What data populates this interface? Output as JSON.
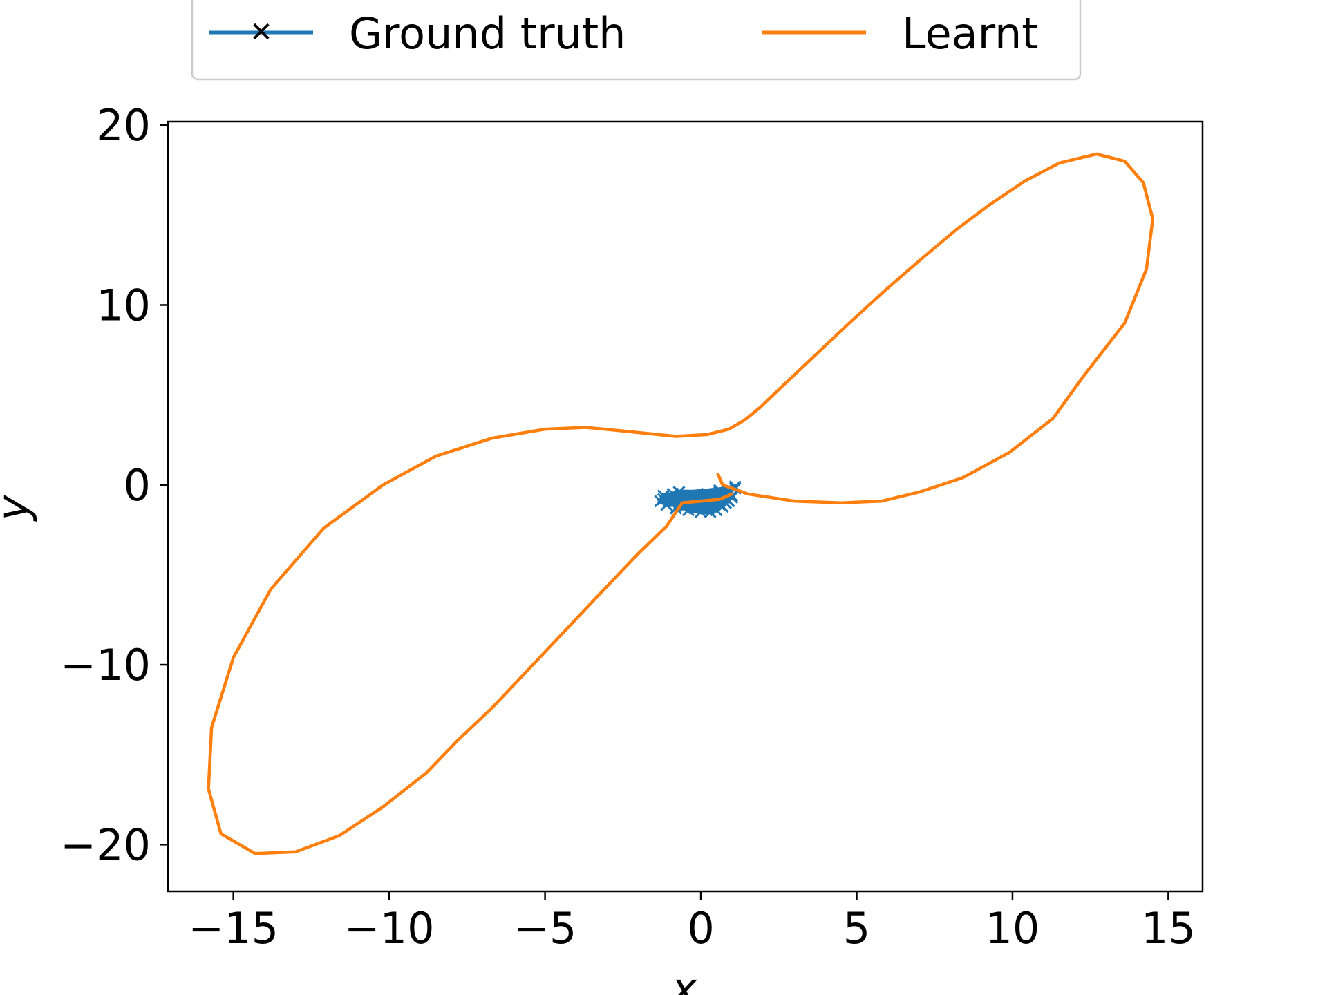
{
  "chart_data": {
    "type": "line",
    "title": "",
    "xlabel": "x",
    "ylabel": "y",
    "xlim": [
      -17.1,
      16.1
    ],
    "ylim": [
      -22.6,
      20.2
    ],
    "xticks": [
      -15,
      -10,
      -5,
      0,
      5,
      10,
      15
    ],
    "yticks": [
      -20,
      -10,
      0,
      10,
      20
    ],
    "xtick_labels": [
      "−15",
      "−10",
      "−5",
      "0",
      "5",
      "10",
      "15"
    ],
    "ytick_labels": [
      "−20",
      "−10",
      "0",
      "10",
      "20"
    ],
    "grid": false,
    "legend_position": "top-center, above the plot area",
    "series": [
      {
        "name": "Ground truth",
        "color": "#1f77b4",
        "marker": "x",
        "points": [
          [
            0.6,
            -0.3
          ],
          [
            -0.9,
            -0.5
          ],
          [
            1.1,
            -0.2
          ],
          [
            -1.2,
            -0.8
          ],
          [
            1.0,
            -0.6
          ],
          [
            -1.1,
            -1.1
          ],
          [
            0.9,
            -0.9
          ],
          [
            -0.8,
            -1.3
          ],
          [
            0.7,
            -1.2
          ],
          [
            -0.4,
            -1.4
          ],
          [
            0.3,
            -1.5
          ],
          [
            0.0,
            -1.5
          ],
          [
            0.5,
            -1.4
          ],
          [
            -0.6,
            -1.2
          ],
          [
            0.8,
            -1.0
          ],
          [
            -1.0,
            -0.9
          ],
          [
            1.0,
            -0.7
          ],
          [
            -1.2,
            -0.6
          ],
          [
            0.6,
            -0.4
          ],
          [
            -0.7,
            -0.4
          ],
          [
            0.2,
            -0.5
          ],
          [
            -0.3,
            -0.6
          ],
          [
            0.9,
            -0.5
          ],
          [
            -0.9,
            -0.7
          ],
          [
            0.4,
            -0.8
          ],
          [
            -0.5,
            -1.0
          ],
          [
            0.6,
            -1.1
          ],
          [
            -0.2,
            -1.3
          ],
          [
            0.1,
            -1.2
          ],
          [
            1.1,
            -0.1
          ],
          [
            -1.3,
            -0.9
          ],
          [
            0.9,
            -0.3
          ]
        ]
      },
      {
        "name": "Learnt",
        "color": "#ff7f0e",
        "marker": "none",
        "points": [
          [
            0.55,
            0.6
          ],
          [
            0.7,
            0.0
          ],
          [
            1.5,
            -0.5
          ],
          [
            3.0,
            -0.9
          ],
          [
            4.5,
            -1.0
          ],
          [
            5.8,
            -0.9
          ],
          [
            7.0,
            -0.4
          ],
          [
            8.4,
            0.4
          ],
          [
            9.9,
            1.8
          ],
          [
            11.3,
            3.7
          ],
          [
            12.3,
            6.1
          ],
          [
            13.6,
            9.0
          ],
          [
            14.3,
            12.0
          ],
          [
            14.5,
            14.8
          ],
          [
            14.2,
            16.8
          ],
          [
            13.6,
            18.0
          ],
          [
            12.7,
            18.4
          ],
          [
            11.5,
            17.9
          ],
          [
            10.4,
            16.9
          ],
          [
            9.2,
            15.5
          ],
          [
            8.2,
            14.2
          ],
          [
            7.1,
            12.6
          ],
          [
            5.9,
            10.8
          ],
          [
            4.7,
            8.9
          ],
          [
            3.6,
            7.1
          ],
          [
            2.5,
            5.3
          ],
          [
            1.9,
            4.3
          ],
          [
            1.4,
            3.6
          ],
          [
            0.9,
            3.1
          ],
          [
            0.2,
            2.8
          ],
          [
            -0.8,
            2.7
          ],
          [
            -2.5,
            3.0
          ],
          [
            -3.7,
            3.2
          ],
          [
            -5.0,
            3.1
          ],
          [
            -6.7,
            2.6
          ],
          [
            -8.5,
            1.6
          ],
          [
            -10.2,
            0.0
          ],
          [
            -12.1,
            -2.4
          ],
          [
            -13.8,
            -5.8
          ],
          [
            -15.0,
            -9.6
          ],
          [
            -15.7,
            -13.5
          ],
          [
            -15.8,
            -16.9
          ],
          [
            -15.4,
            -19.4
          ],
          [
            -14.3,
            -20.5
          ],
          [
            -13.0,
            -20.4
          ],
          [
            -11.6,
            -19.5
          ],
          [
            -10.2,
            -17.9
          ],
          [
            -8.8,
            -16.0
          ],
          [
            -7.8,
            -14.2
          ],
          [
            -6.7,
            -12.4
          ],
          [
            -5.5,
            -10.2
          ],
          [
            -4.3,
            -8.0
          ],
          [
            -3.1,
            -5.8
          ],
          [
            -2.0,
            -3.8
          ],
          [
            -1.1,
            -2.3
          ],
          [
            -0.6,
            -1.0
          ],
          [
            0.0,
            -0.9
          ],
          [
            0.6,
            -0.8
          ],
          [
            1.0,
            -0.5
          ]
        ]
      }
    ]
  }
}
